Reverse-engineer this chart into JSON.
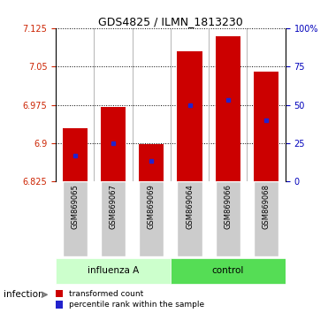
{
  "title": "GDS4825 / ILMN_1813230",
  "categories": [
    "GSM869065",
    "GSM869067",
    "GSM869069",
    "GSM869064",
    "GSM869066",
    "GSM869068"
  ],
  "group_labels": [
    "influenza A",
    "control"
  ],
  "group_sizes": [
    3,
    3
  ],
  "bar_bottom": 6.825,
  "red_tops": [
    6.93,
    6.97,
    6.898,
    7.08,
    7.11,
    7.04
  ],
  "blue_values": [
    6.875,
    6.9,
    6.865,
    6.975,
    6.985,
    6.945
  ],
  "ylim_left": [
    6.825,
    7.125
  ],
  "yticks_left": [
    6.825,
    6.9,
    6.975,
    7.05,
    7.125
  ],
  "ytick_labels_left": [
    "6.825",
    "6.9",
    "6.975",
    "7.05",
    "7.125"
  ],
  "ylim_right": [
    0,
    100
  ],
  "yticks_right": [
    0,
    25,
    50,
    75,
    100
  ],
  "ytick_labels_right": [
    "0",
    "25",
    "50",
    "75",
    "100%"
  ],
  "bar_color": "#cc0000",
  "blue_color": "#2222cc",
  "left_tick_color": "#cc2200",
  "right_tick_color": "#0000bb",
  "group_colors": [
    "#ccffcc",
    "#55dd55"
  ],
  "tick_bg_color": "#cccccc",
  "bar_width": 0.65,
  "legend_red_label": "transformed count",
  "legend_blue_label": "percentile rank within the sample",
  "infection_label": "infection",
  "figsize": [
    3.71,
    3.54
  ],
  "dpi": 100
}
